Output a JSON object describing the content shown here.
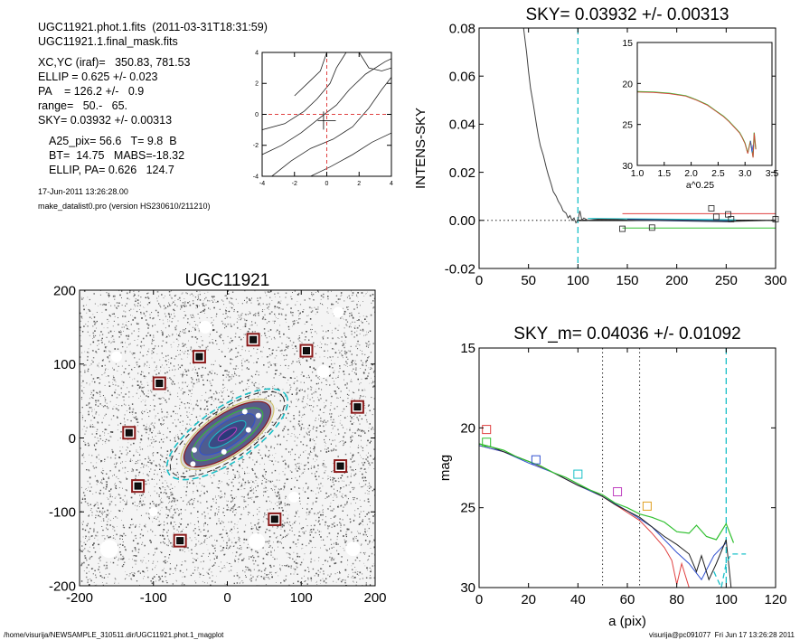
{
  "header": {
    "line1": "UGC11921.phot.1.fits  (2011-03-31T18:31:59)",
    "line2": "UGC11921.1.final_mask.fits",
    "xcyc": "XC,YC (iraf)=   350.83, 781.53",
    "ellip": "ELLIP = 0.625 +/- 0.023",
    "pa": "PA    = 126.2 +/-   0.9",
    "range": "range=   50.-   65.",
    "sky": "SKY= 0.03932 +/- 0.00313",
    "a25": "A25_pix= 56.6   T= 9.8  B",
    "bt": "BT=  14.75   MABS=-18.32",
    "ellip_pa": "ELLIP, PA= 0.626   124.7",
    "date": "17-Jun-2011 13:26:28.00",
    "program": "make_datalist0.pro (version HS230610/211210)"
  },
  "footer": {
    "path": "/home/visurija/NEWSAMPLE_310511.dir/UGC11921.phot.1_magplot",
    "user": "visurija@pc091077  Fri Jun 17 13:26:28 2011"
  },
  "chart_data": [
    {
      "id": "contour",
      "type": "contour",
      "xlim": [
        -4,
        4
      ],
      "ylim": [
        -4,
        4
      ],
      "xticks": [
        "-4",
        "-2",
        "0",
        "2",
        "4"
      ],
      "yticks": [
        "-4",
        "-2",
        "0",
        "2",
        "4"
      ]
    },
    {
      "id": "image",
      "type": "image",
      "title": "UGC11921",
      "xlim": [
        -200,
        200
      ],
      "ylim": [
        -200,
        200
      ],
      "xticks": [
        "-200",
        "-100",
        "0",
        "100",
        "200"
      ],
      "yticks": [
        "-200",
        "-100",
        "0",
        "100",
        "200"
      ],
      "colors": {
        "box_outer": "#8b1a1a",
        "ellipse_dash": "#19c0c8"
      },
      "masked_stars": [
        {
          "x": 35,
          "y": 133
        },
        {
          "x": 107,
          "y": 118
        },
        {
          "x": -38,
          "y": 110
        },
        {
          "x": -92,
          "y": 74
        },
        {
          "x": 176,
          "y": 42
        },
        {
          "x": -133,
          "y": 7
        },
        {
          "x": 153,
          "y": -38
        },
        {
          "x": -121,
          "y": -65
        },
        {
          "x": 64,
          "y": -110
        },
        {
          "x": -64,
          "y": -139
        }
      ]
    },
    {
      "id": "sky",
      "type": "line",
      "title": "SKY= 0.03932 +/- 0.00313",
      "ylabel": "INTENS-SKY",
      "xlim": [
        0,
        300
      ],
      "ylim": [
        -0.02,
        0.08
      ],
      "xticks": [
        "0",
        "50",
        "100",
        "150",
        "200",
        "250",
        "300"
      ],
      "yticks": [
        "-0.02",
        "0.00",
        "0.02",
        "0.04",
        "0.06",
        "0.08"
      ],
      "vline_x": 100,
      "colors": {
        "profile": "#404040",
        "red": "#e04040",
        "green": "#30c030",
        "cyan": "#19c0c8",
        "blue": "#1a3c80"
      },
      "profile": [
        [
          40,
          0.09
        ],
        [
          45,
          0.08
        ],
        [
          48,
          0.07
        ],
        [
          50,
          0.062
        ],
        [
          52,
          0.055
        ],
        [
          55,
          0.048
        ],
        [
          58,
          0.04
        ],
        [
          60,
          0.035
        ],
        [
          62,
          0.031
        ],
        [
          65,
          0.027
        ],
        [
          68,
          0.022
        ],
        [
          70,
          0.019
        ],
        [
          73,
          0.015
        ],
        [
          75,
          0.012
        ],
        [
          78,
          0.01
        ],
        [
          80,
          0.008
        ],
        [
          83,
          0.006
        ],
        [
          85,
          0.004
        ],
        [
          88,
          0.003
        ],
        [
          90,
          0.001
        ],
        [
          92,
          0.002
        ],
        [
          94,
          0.0
        ],
        [
          96,
          0.001
        ],
        [
          98,
          -0.001
        ],
        [
          100,
          0.0
        ],
        [
          102,
          0.004
        ],
        [
          104,
          0.0
        ],
        [
          106,
          0.001
        ],
        [
          110,
          0.0
        ],
        [
          120,
          0.0005
        ],
        [
          140,
          0.0004
        ],
        [
          160,
          0.0
        ],
        [
          200,
          0.0
        ],
        [
          250,
          -0.0005
        ],
        [
          300,
          0.0
        ]
      ],
      "red_level": 0.0028,
      "green_level": -0.0032,
      "squares": [
        [
          145,
          -0.0035
        ],
        [
          175,
          -0.003
        ],
        [
          235,
          0.005
        ],
        [
          240,
          0.0015
        ],
        [
          252,
          0.0025
        ],
        [
          255,
          0.0005
        ],
        [
          300,
          0.0005
        ]
      ],
      "inset": {
        "xlabel": "a^0.25",
        "xlim": [
          1.0,
          3.5
        ],
        "ylim": [
          15,
          30
        ],
        "xticks": [
          "1.0",
          "1.5",
          "2.0",
          "2.5",
          "3.0",
          "3.5"
        ],
        "yticks": [
          "15",
          "20",
          "25",
          "30"
        ],
        "profile": [
          [
            1.0,
            21.0
          ],
          [
            1.3,
            21.05
          ],
          [
            1.6,
            21.2
          ],
          [
            1.9,
            21.5
          ],
          [
            2.1,
            22.0
          ],
          [
            2.3,
            22.6
          ],
          [
            2.45,
            23.3
          ],
          [
            2.6,
            24.0
          ],
          [
            2.7,
            24.6
          ],
          [
            2.8,
            25.3
          ],
          [
            2.9,
            26.0
          ],
          [
            2.95,
            26.6
          ],
          [
            3.0,
            27.3
          ],
          [
            3.05,
            28.5
          ],
          [
            3.1,
            27.0
          ],
          [
            3.15,
            29.0
          ],
          [
            3.17,
            26.0
          ],
          [
            3.2,
            28.0
          ]
        ]
      }
    },
    {
      "id": "mag",
      "type": "line",
      "title": "SKY_m=  0.04036 +/- 0.01092",
      "xlabel": "a (pix)",
      "ylabel": "mag",
      "xlim": [
        0,
        120
      ],
      "ylim": [
        30,
        15
      ],
      "xticks": [
        "0",
        "20",
        "40",
        "60",
        "80",
        "100",
        "120"
      ],
      "yticks": [
        "15",
        "20",
        "25",
        "30"
      ],
      "vlines_dotted": [
        50,
        65
      ],
      "vline_dashed": 100,
      "colors": {
        "green": "#30c030",
        "black": "#202020",
        "red": "#e04040",
        "blue": "#3050d0",
        "cyan": "#19c0c8",
        "orange": "#e0a020",
        "magenta": "#c040c0"
      },
      "green": [
        [
          0,
          21.0
        ],
        [
          5,
          21.2
        ],
        [
          10,
          21.4
        ],
        [
          15,
          21.8
        ],
        [
          20,
          22.1
        ],
        [
          25,
          22.4
        ],
        [
          30,
          22.8
        ],
        [
          35,
          23.1
        ],
        [
          40,
          23.5
        ],
        [
          45,
          23.9
        ],
        [
          50,
          24.2
        ],
        [
          55,
          24.7
        ],
        [
          60,
          25.0
        ],
        [
          65,
          25.4
        ],
        [
          70,
          25.6
        ],
        [
          75,
          25.9
        ],
        [
          80,
          26.5
        ],
        [
          85,
          26.6
        ],
        [
          88,
          26.1
        ],
        [
          92,
          26.8
        ],
        [
          96,
          27.0
        ],
        [
          100,
          26.0
        ],
        [
          103,
          27.2
        ]
      ],
      "black": [
        [
          0,
          21.0
        ],
        [
          5,
          21.2
        ],
        [
          10,
          21.5
        ],
        [
          15,
          21.8
        ],
        [
          20,
          22.1
        ],
        [
          25,
          22.4
        ],
        [
          30,
          22.8
        ],
        [
          35,
          23.2
        ],
        [
          40,
          23.6
        ],
        [
          45,
          23.9
        ],
        [
          50,
          24.3
        ],
        [
          55,
          24.8
        ],
        [
          60,
          25.2
        ],
        [
          65,
          25.6
        ],
        [
          70,
          26.2
        ],
        [
          75,
          26.8
        ],
        [
          80,
          27.3
        ],
        [
          85,
          27.9
        ],
        [
          88,
          29.0
        ],
        [
          90,
          28.0
        ],
        [
          93,
          29.5
        ],
        [
          96,
          28.5
        ],
        [
          100,
          27.0
        ],
        [
          102,
          30.0
        ]
      ],
      "red": [
        [
          0,
          21.1
        ],
        [
          10,
          21.5
        ],
        [
          20,
          22.1
        ],
        [
          30,
          22.8
        ],
        [
          40,
          23.6
        ],
        [
          50,
          24.3
        ],
        [
          60,
          25.3
        ],
        [
          65,
          25.8
        ],
        [
          70,
          26.6
        ],
        [
          75,
          27.5
        ],
        [
          78,
          28.3
        ],
        [
          80,
          29.8
        ],
        [
          82,
          28.5
        ],
        [
          85,
          30.0
        ]
      ],
      "blue": [
        [
          0,
          21.1
        ],
        [
          10,
          21.5
        ],
        [
          20,
          22.2
        ],
        [
          30,
          22.8
        ],
        [
          40,
          23.6
        ],
        [
          50,
          24.3
        ],
        [
          60,
          25.2
        ],
        [
          65,
          25.7
        ],
        [
          70,
          26.2
        ],
        [
          75,
          27.0
        ],
        [
          80,
          27.8
        ],
        [
          85,
          28.5
        ],
        [
          90,
          29.5
        ],
        [
          95,
          28.0
        ],
        [
          100,
          27.2
        ]
      ],
      "cyan_tail": [
        [
          95,
          29.0
        ],
        [
          98,
          30.0
        ],
        [
          100,
          28.5
        ],
        [
          102,
          27.9
        ],
        [
          108,
          27.9
        ]
      ],
      "squares": [
        {
          "x": 3,
          "y": 20.1,
          "c": "red"
        },
        {
          "x": 3,
          "y": 20.9,
          "c": "green"
        },
        {
          "x": 23,
          "y": 22.0,
          "c": "blue"
        },
        {
          "x": 40,
          "y": 22.9,
          "c": "cyan"
        },
        {
          "x": 56,
          "y": 24.0,
          "c": "magenta"
        },
        {
          "x": 68,
          "y": 24.9,
          "c": "orange"
        }
      ]
    }
  ]
}
